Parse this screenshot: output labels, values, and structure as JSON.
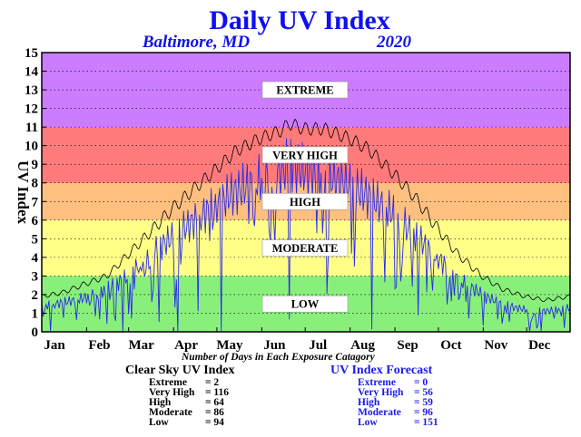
{
  "chart_data": {
    "type": "line",
    "title": "Daily UV Index",
    "subtitle_location": "Baltimore, MD",
    "subtitle_year": "2020",
    "ylabel": "UV Index",
    "xlabel": "Number of Days in Each Exposure Catagory",
    "ylim": [
      0,
      15
    ],
    "xlim": [
      1,
      366
    ],
    "yticks": [
      0,
      1,
      2,
      3,
      4,
      5,
      6,
      7,
      8,
      9,
      10,
      11,
      12,
      13,
      14,
      15
    ],
    "months": [
      "Jan",
      "Feb",
      "Mar",
      "Apr",
      "May",
      "Jun",
      "Jul",
      "Aug",
      "Sep",
      "Oct",
      "Nov",
      "Dec"
    ],
    "grid": "horizontal dotted",
    "bands": [
      {
        "name": "LOW",
        "from": 0,
        "to": 3,
        "color": "#88f07a"
      },
      {
        "name": "MODERATE",
        "from": 3,
        "to": 6,
        "color": "#ffff88"
      },
      {
        "name": "HIGH",
        "from": 6,
        "to": 8,
        "color": "#ffbf7f"
      },
      {
        "name": "VERY HIGH",
        "from": 8,
        "to": 11,
        "color": "#ff7b7b"
      },
      {
        "name": "EXTREME",
        "from": 11,
        "to": 15,
        "color": "#cc7cff"
      }
    ],
    "series": [
      {
        "name": "Clear Sky UV Index",
        "color": "#000000",
        "x": [
          1,
          15,
          32,
          46,
          60,
          74,
          91,
          105,
          121,
          135,
          152,
          166,
          172,
          182,
          196,
          213,
          227,
          244,
          258,
          274,
          288,
          305,
          319,
          335,
          349,
          366
        ],
        "y": [
          1.9,
          2.1,
          2.6,
          3.0,
          4.1,
          5.2,
          6.6,
          7.6,
          8.7,
          9.7,
          10.4,
          10.8,
          11.2,
          10.9,
          10.9,
          10.4,
          9.8,
          8.5,
          7.3,
          5.6,
          4.2,
          3.0,
          2.3,
          1.9,
          1.7,
          1.9
        ]
      },
      {
        "name": "UV Index Forecast",
        "color": "#2a2aee",
        "x": [
          1,
          15,
          32,
          46,
          60,
          74,
          91,
          105,
          121,
          135,
          152,
          166,
          172,
          182,
          196,
          213,
          227,
          244,
          258,
          274,
          288,
          305,
          319,
          335,
          349,
          366
        ],
        "y": [
          1.5,
          1.7,
          2.0,
          2.5,
          3.2,
          4.4,
          5.5,
          6.4,
          7.4,
          8.2,
          8.9,
          9.3,
          9.8,
          9.4,
          9.1,
          8.6,
          7.9,
          6.9,
          5.7,
          4.4,
          3.1,
          2.2,
          1.6,
          1.3,
          1.2,
          1.4
        ]
      }
    ],
    "summary": {
      "clear_sky": {
        "title": "Clear Sky UV Index",
        "rows": [
          {
            "label": "Extreme",
            "value": "2"
          },
          {
            "label": "Very High",
            "value": "116"
          },
          {
            "label": "High",
            "value": "64"
          },
          {
            "label": "Moderate",
            "value": "86"
          },
          {
            "label": "Low",
            "value": "94"
          }
        ]
      },
      "forecast": {
        "title": "UV Index Forecast",
        "rows": [
          {
            "label": "Extreme",
            "value": "0"
          },
          {
            "label": "Very High",
            "value": "56"
          },
          {
            "label": "High",
            "value": "59"
          },
          {
            "label": "Moderate",
            "value": "96"
          },
          {
            "label": "Low",
            "value": "151"
          }
        ]
      }
    }
  }
}
